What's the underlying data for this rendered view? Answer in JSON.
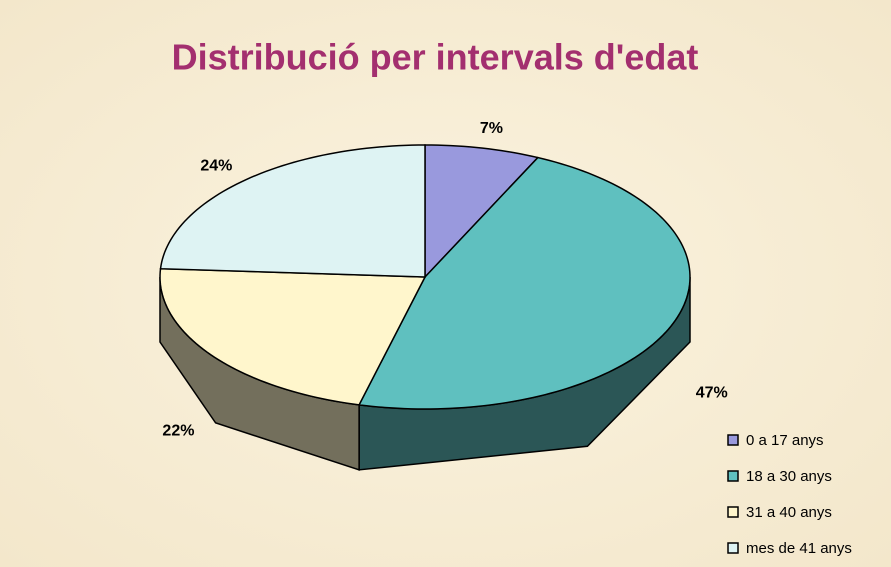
{
  "chart_data": {
    "type": "pie3d",
    "title": "Distribució per intervals d'edat",
    "categories": [
      "0 a 17 anys",
      "18 a 30 anys",
      "31 a 40 anys",
      "mes de 41 anys"
    ],
    "values": [
      7,
      47,
      22,
      24
    ],
    "value_labels": [
      "7%",
      "47%",
      "22%",
      "24%"
    ],
    "colors": [
      "#9999dd",
      "#5fc0bf",
      "#fff6cc",
      "#def3f3"
    ],
    "legend": "right"
  }
}
